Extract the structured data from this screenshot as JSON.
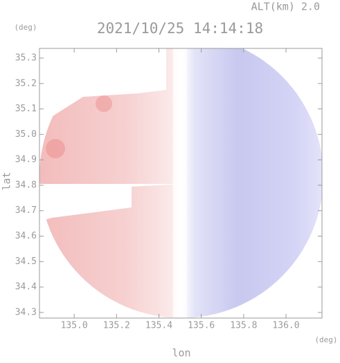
{
  "chart_data": {
    "type": "image",
    "altitude_label": "ALT(km) 2.0",
    "title": "2021/10/25 14:14:18",
    "y_unit": "(deg)",
    "x_unit": "(deg)",
    "ylabel": "lat",
    "xlabel": "lon",
    "xlim": [
      134.836,
      136.17
    ],
    "ylim": [
      34.278,
      35.338
    ],
    "xticks": [
      {
        "value": 135.0,
        "label": "135.0"
      },
      135.2,
      135.4,
      135.6,
      135.8,
      {
        "value": 136.0,
        "label": "136.0"
      }
    ],
    "yticks": [
      35.3,
      35.2,
      35.1,
      {
        "value": 35.0,
        "label": "35.0"
      },
      34.9,
      34.8,
      34.7,
      34.6,
      34.5,
      34.4,
      34.3
    ]
  }
}
